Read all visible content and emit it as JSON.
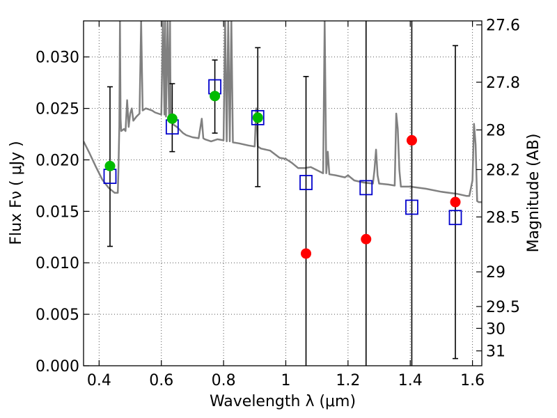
{
  "chart_data": {
    "type": "scatter",
    "xlabel": "Wavelength  λ (μm)",
    "ylabel": "Flux  Fν  ( μJy )",
    "y2label": "Magnitude (AB)",
    "xlim": [
      0.35,
      1.63
    ],
    "ylim": [
      0.0,
      0.0335
    ],
    "grid": true,
    "x_ticks": [
      0.4,
      0.6,
      0.8,
      1.0,
      1.2,
      1.4,
      1.6
    ],
    "x_tick_labels": [
      "0.4",
      "0.6",
      "0.8",
      "1",
      "1.2",
      "1.4",
      "1.6"
    ],
    "y_ticks": [
      0.0,
      0.005,
      0.01,
      0.015,
      0.02,
      0.025,
      0.03
    ],
    "y_tick_labels": [
      "0.000",
      "0.005",
      "0.010",
      "0.015",
      "0.020",
      "0.025",
      "0.030"
    ],
    "y2_ticks": [
      {
        "mag": 27.6,
        "label": "27.6"
      },
      {
        "mag": 27.8,
        "label": "27.8"
      },
      {
        "mag": 28.0,
        "label": "28"
      },
      {
        "mag": 28.2,
        "label": "28.2"
      },
      {
        "mag": 28.5,
        "label": "28.5"
      },
      {
        "mag": 29.0,
        "label": "29"
      },
      {
        "mag": 29.5,
        "label": "29.5"
      },
      {
        "mag": 30.0,
        "label": "30"
      },
      {
        "mag": 31.0,
        "label": "31"
      }
    ],
    "colors": {
      "model": "#808080",
      "green": "#00bb00",
      "red": "#ff0000",
      "model_box": "#0000cc",
      "errorbar": "#000000",
      "grid": "#555555"
    },
    "model_spectrum": {
      "x": [
        0.35,
        0.37,
        0.39,
        0.41,
        0.43,
        0.45,
        0.455,
        0.46,
        0.462,
        0.465,
        0.467,
        0.469,
        0.471,
        0.48,
        0.485,
        0.49,
        0.495,
        0.5,
        0.505,
        0.51,
        0.52,
        0.53,
        0.535,
        0.54,
        0.55,
        0.57,
        0.58,
        0.6,
        0.605,
        0.61,
        0.612,
        0.615,
        0.62,
        0.625,
        0.628,
        0.63,
        0.64,
        0.65,
        0.66,
        0.67,
        0.68,
        0.7,
        0.72,
        0.73,
        0.735,
        0.74,
        0.75,
        0.76,
        0.78,
        0.8,
        0.805,
        0.81,
        0.815,
        0.82,
        0.825,
        0.83,
        0.85,
        0.88,
        0.9,
        0.905,
        0.91,
        0.915,
        0.92,
        0.95,
        0.98,
        1.0,
        1.02,
        1.04,
        1.06,
        1.08,
        1.1,
        1.12,
        1.125,
        1.13,
        1.135,
        1.14,
        1.16,
        1.19,
        1.2,
        1.22,
        1.25,
        1.28,
        1.285,
        1.29,
        1.295,
        1.3,
        1.33,
        1.35,
        1.355,
        1.36,
        1.365,
        1.37,
        1.4,
        1.45,
        1.5,
        1.55,
        1.58,
        1.59,
        1.6,
        1.605,
        1.61,
        1.615,
        1.62,
        1.63
      ],
      "y": [
        0.0218,
        0.0206,
        0.0193,
        0.0181,
        0.0173,
        0.0168,
        0.0168,
        0.0168,
        0.019,
        0.0233,
        0.0335,
        0.024,
        0.0228,
        0.023,
        0.0228,
        0.0258,
        0.0232,
        0.0245,
        0.025,
        0.0238,
        0.0242,
        0.0245,
        0.0335,
        0.0248,
        0.025,
        0.0248,
        0.0246,
        0.0244,
        0.0335,
        0.0244,
        0.0335,
        0.0242,
        0.0335,
        0.024,
        0.0335,
        0.0237,
        0.0234,
        0.0232,
        0.0229,
        0.0226,
        0.0224,
        0.0222,
        0.0221,
        0.024,
        0.0221,
        0.022,
        0.0219,
        0.0218,
        0.022,
        0.0219,
        0.0335,
        0.0218,
        0.0335,
        0.0218,
        0.0335,
        0.0217,
        0.0216,
        0.0214,
        0.0213,
        0.025,
        0.0213,
        0.0212,
        0.0211,
        0.0209,
        0.0202,
        0.0201,
        0.0197,
        0.0192,
        0.0192,
        0.0193,
        0.019,
        0.0187,
        0.0335,
        0.0187,
        0.0208,
        0.0186,
        0.0185,
        0.0183,
        0.0185,
        0.018,
        0.0178,
        0.0177,
        0.019,
        0.021,
        0.0185,
        0.0177,
        0.0176,
        0.0175,
        0.0245,
        0.023,
        0.019,
        0.0174,
        0.0174,
        0.0172,
        0.0169,
        0.0167,
        0.0165,
        0.0165,
        0.018,
        0.0235,
        0.0215,
        0.016,
        0.0159,
        0.0159
      ]
    },
    "model_fluxes": {
      "x": [
        0.435,
        0.635,
        0.772,
        0.91,
        1.065,
        1.258,
        1.405,
        1.545
      ],
      "y": [
        0.0184,
        0.0232,
        0.0271,
        0.0241,
        0.0178,
        0.0173,
        0.0154,
        0.0144
      ]
    },
    "detections": {
      "x": [
        0.435,
        0.635,
        0.772,
        0.91
      ],
      "y": [
        0.0194,
        0.024,
        0.0262,
        0.0241
      ]
    },
    "nondetections": {
      "x": [
        1.065,
        1.258,
        1.405,
        1.545
      ],
      "y": [
        0.0109,
        0.0123,
        0.0219,
        0.0159
      ]
    },
    "errorbars": [
      {
        "x": 0.435,
        "low": 0.0116,
        "high": 0.0271
      },
      {
        "x": 0.635,
        "low": 0.0208,
        "high": 0.0274
      },
      {
        "x": 0.772,
        "low": 0.0226,
        "high": 0.0297
      },
      {
        "x": 0.91,
        "low": 0.0174,
        "high": 0.0309
      },
      {
        "x": 1.065,
        "low": 0.0,
        "high": 0.0281
      },
      {
        "x": 1.258,
        "low": 0.0,
        "high": 0.0335
      },
      {
        "x": 1.405,
        "low": 0.0,
        "high": 0.0335
      },
      {
        "x": 1.545,
        "low": 0.0007,
        "high": 0.0311
      }
    ]
  }
}
